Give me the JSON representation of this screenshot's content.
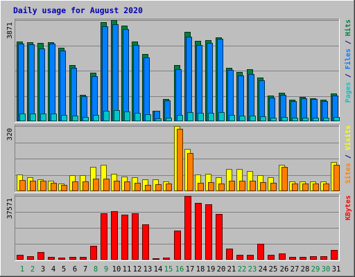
{
  "chart_data": {
    "type": "bar",
    "title": "Daily usage for August 2020",
    "categories": [
      "1",
      "2",
      "3",
      "4",
      "5",
      "6",
      "7",
      "8",
      "9",
      "10",
      "11",
      "12",
      "13",
      "14",
      "15",
      "16",
      "17",
      "18",
      "19",
      "20",
      "21",
      "22",
      "23",
      "24",
      "25",
      "26",
      "27",
      "28",
      "29",
      "30",
      "31"
    ],
    "weekend_days": [
      "1",
      "2",
      "8",
      "9",
      "15",
      "16",
      "22",
      "23",
      "29",
      "30"
    ],
    "panels": [
      {
        "id": "top",
        "ymax_label": "3871",
        "ymax": 3871,
        "legend": [
          {
            "text": "Pages",
            "color": "#00c8c8"
          },
          {
            "text": " / ",
            "color": "#000080"
          },
          {
            "text": "Files",
            "color": "#0080ff"
          },
          {
            "text": " / ",
            "color": "#000080"
          },
          {
            "text": "Hits",
            "color": "#008040"
          }
        ],
        "series": [
          {
            "name": "Hits",
            "color": "#008040",
            "values": [
              3050,
              3020,
              3000,
              3020,
              2820,
              2140,
              1020,
              1860,
              3790,
              3871,
              3650,
              3040,
              2580,
              410,
              840,
              2141,
              3420,
              3070,
              3110,
              3220,
              2050,
              1870,
              1980,
              1680,
              970,
              1080,
              830,
              940,
              880,
              830,
              1060
            ]
          },
          {
            "name": "Files",
            "color": "#0080ff",
            "values": [
              2980,
              2950,
              2780,
              2970,
              2700,
              2050,
              950,
              1720,
              3630,
              3700,
              3520,
              2920,
              2430,
              400,
              800,
              1990,
              3230,
              2920,
              3000,
              3150,
              1950,
              1760,
              1790,
              1560,
              910,
              1020,
              780,
              880,
              850,
              780,
              980
            ]
          },
          {
            "name": "Pages",
            "color": "#00c8c8",
            "values": [
              300,
              280,
              280,
              300,
              250,
              200,
              150,
              250,
              400,
              420,
              380,
              310,
              260,
              100,
              130,
              240,
              350,
              320,
              330,
              340,
              230,
              210,
              220,
              190,
              140,
              150,
              130,
              140,
              130,
              120,
              150
            ]
          }
        ]
      },
      {
        "id": "middle",
        "ymax_label": "320",
        "ymax": 320,
        "legend": [
          {
            "text": "Sites",
            "color": "#ff8000"
          },
          {
            "text": " / ",
            "color": "#000080"
          },
          {
            "text": "Visits",
            "color": "#ffff00"
          }
        ],
        "series": [
          {
            "name": "Visits",
            "color": "#ffff00",
            "values": [
              80,
              68,
              58,
              50,
              38,
              78,
              78,
              118,
              128,
              84,
              72,
              68,
              58,
              58,
              48,
              320,
              208,
              82,
              84,
              68,
              108,
              108,
              98,
              78,
              68,
              128,
              48,
              48,
              48,
              48,
              143
            ]
          },
          {
            "name": "Sites",
            "color": "#ff8000",
            "values": [
              56,
              52,
              50,
              40,
              30,
              46,
              46,
              60,
              60,
              52,
              46,
              40,
              32,
              34,
              38,
              305,
              188,
              42,
              44,
              38,
              52,
              52,
              50,
              44,
              40,
              118,
              36,
              38,
              36,
              36,
              128
            ]
          }
        ]
      },
      {
        "id": "bottom",
        "ymax_label": "37571",
        "ymax": 37571,
        "legend": [
          {
            "text": "KBytes",
            "color": "#ff0000"
          }
        ],
        "series": [
          {
            "name": "KBytes",
            "color": "#ff0000",
            "values": [
              3000,
              2000,
              4500,
              1500,
              1200,
              1500,
              1800,
              8200,
              27500,
              28500,
              26500,
              27500,
              21000,
              1000,
              1200,
              17000,
              37571,
              33500,
              32500,
              27000,
              6500,
              3000,
              2800,
              9200,
              2800,
              3800,
              1800,
              1800,
              2000,
              2000,
              5800
            ]
          }
        ]
      }
    ],
    "colors": {
      "background": "#c0c0c0",
      "plot_background": "#bebebe",
      "title": "#0000b0",
      "grid": "#808080",
      "axis_label": "#000000",
      "weekday_label": "#000000",
      "weekend_label": "#008040"
    }
  }
}
